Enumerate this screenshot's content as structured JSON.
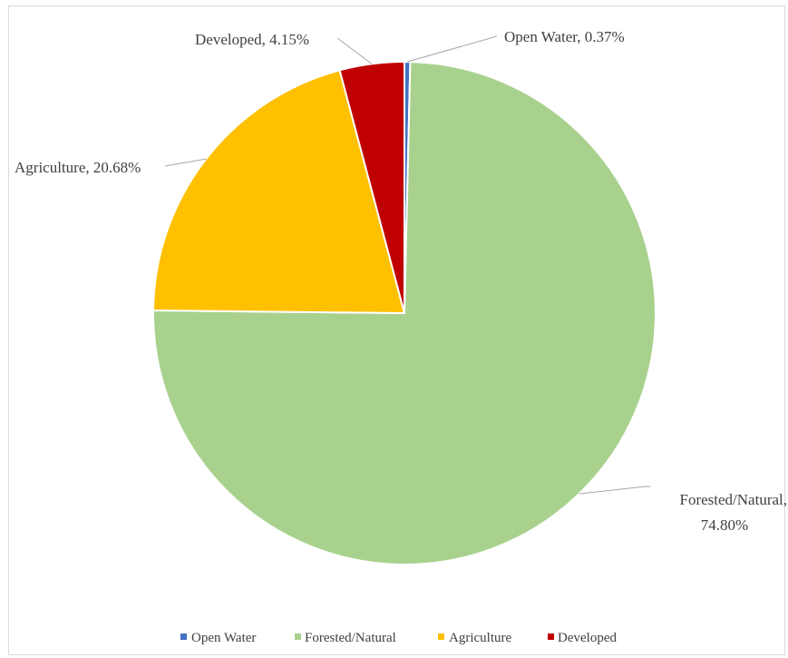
{
  "chart_data": {
    "type": "pie",
    "slices": [
      {
        "label": "Open Water",
        "value": 0.37,
        "data_label": "Open Water, 0.37%",
        "color": "#4472c4"
      },
      {
        "label": "Forested/Natural",
        "value": 74.8,
        "data_label_line1": "Forested/Natural,",
        "data_label_line2": "74.80%",
        "color": "#a9d18e"
      },
      {
        "label": "Agriculture",
        "value": 20.68,
        "data_label": "Agriculture, 20.68%",
        "color": "#ffc000"
      },
      {
        "label": "Developed",
        "value": 4.15,
        "data_label": "Developed, 4.15%",
        "color": "#c00000"
      }
    ],
    "legend_position": "bottom",
    "start_angle": "12 o'clock, clockwise"
  }
}
